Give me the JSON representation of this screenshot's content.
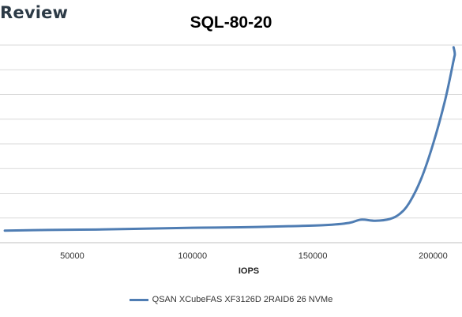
{
  "brand": {
    "name": "Review"
  },
  "chart_data": {
    "type": "line",
    "title": "SQL-80-20",
    "xlabel": "IOPS",
    "ylabel": "",
    "xlim": [
      20000,
      212000
    ],
    "ylim": [
      0,
      9
    ],
    "x_ticks": [
      50000,
      100000,
      150000,
      200000
    ],
    "x_tick_labels": [
      "50000",
      "100000",
      "150000",
      "200000"
    ],
    "y_tick_labels_shown": false,
    "grid": "horizontal",
    "legend_position": "bottom",
    "colors": {
      "series": "#4f7db3",
      "grid": "#d9d9d9"
    },
    "series": [
      {
        "name": "QSAN XCubeFAS XF3126D 2RAID6 26 NVMe",
        "points": [
          [
            22000,
            0.55
          ],
          [
            40000,
            0.58
          ],
          [
            60000,
            0.6
          ],
          [
            80000,
            0.64
          ],
          [
            100000,
            0.68
          ],
          [
            120000,
            0.7
          ],
          [
            140000,
            0.75
          ],
          [
            155000,
            0.8
          ],
          [
            165000,
            0.9
          ],
          [
            170000,
            1.05
          ],
          [
            176000,
            1.0
          ],
          [
            182000,
            1.08
          ],
          [
            186000,
            1.3
          ],
          [
            190000,
            1.8
          ],
          [
            195000,
            2.9
          ],
          [
            200000,
            4.5
          ],
          [
            205000,
            6.5
          ],
          [
            208500,
            8.3
          ],
          [
            209000,
            8.6
          ],
          [
            208500,
            8.9
          ]
        ]
      }
    ]
  }
}
